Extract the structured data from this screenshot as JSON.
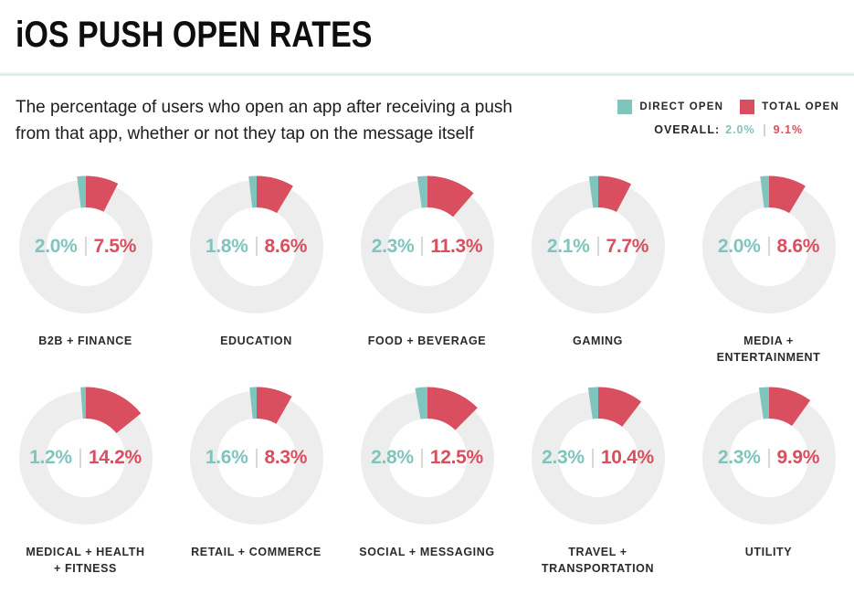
{
  "page_title": "iOS PUSH OPEN RATES",
  "subtitle": "The percentage of users who open an app after receiving a push from that app, whether or not they tap on the message itself",
  "legend": {
    "direct_label": "DIRECT OPEN",
    "total_label": "TOTAL OPEN",
    "overall_label": "OVERALL:",
    "overall_direct": "2.0%",
    "overall_total": "9.1%"
  },
  "colors": {
    "direct": "#7fc4bd",
    "total": "#d94f5f",
    "ring": "#ededed",
    "text_dark": "#26252b",
    "separator": "#d8d8d8"
  },
  "chart_data": {
    "type": "pie",
    "variant": "donut-grid",
    "layout": "2 rows x 5 columns",
    "unit": "percent of users",
    "series_names": [
      "Direct Open",
      "Total Open"
    ],
    "overall": {
      "direct_open": 2.0,
      "total_open": 9.1
    },
    "categories": [
      {
        "label": "B2B + FINANCE",
        "direct_open": 2.0,
        "total_open": 7.5
      },
      {
        "label": "EDUCATION",
        "direct_open": 1.8,
        "total_open": 8.6
      },
      {
        "label": "FOOD + BEVERAGE",
        "direct_open": 2.3,
        "total_open": 11.3
      },
      {
        "label": "GAMING",
        "direct_open": 2.1,
        "total_open": 7.7
      },
      {
        "label": "MEDIA +\nENTERTAINMENT",
        "direct_open": 2.0,
        "total_open": 8.6
      },
      {
        "label": "MEDICAL + HEALTH\n+ FITNESS",
        "direct_open": 1.2,
        "total_open": 14.2
      },
      {
        "label": "RETAIL + COMMERCE",
        "direct_open": 1.6,
        "total_open": 8.3
      },
      {
        "label": "SOCIAL + MESSAGING",
        "direct_open": 2.8,
        "total_open": 12.5
      },
      {
        "label": "TRAVEL +\nTRANSPORTATION",
        "direct_open": 2.3,
        "total_open": 10.4
      },
      {
        "label": "UTILITY",
        "direct_open": 2.3,
        "total_open": 9.9
      }
    ]
  }
}
